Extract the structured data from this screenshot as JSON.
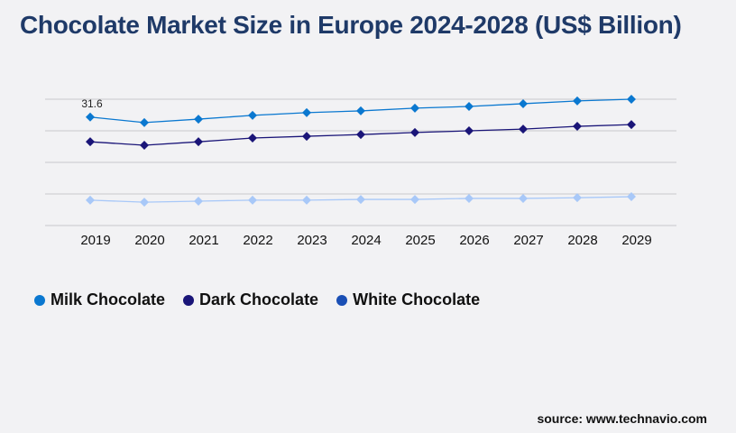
{
  "chart_data": {
    "type": "line",
    "title": "Chocolate Market Size in Europe 2024-2028 (US$ Billion)",
    "xlabel": "",
    "ylabel": "",
    "categories": [
      "2019",
      "2020",
      "2021",
      "2022",
      "2023",
      "2024",
      "2025",
      "2026",
      "2027",
      "2028",
      "2029"
    ],
    "ylim": [
      0,
      36.8
    ],
    "grid": true,
    "legend_position": "bottom-left",
    "series": [
      {
        "name": "Milk Chocolate",
        "color": "#0a78d0",
        "legend_color": "#0a78d0",
        "values": [
          31.6,
          30.0,
          31.0,
          32.1,
          32.9,
          33.4,
          34.2,
          34.7,
          35.5,
          36.3,
          36.8
        ]
      },
      {
        "name": "Dark Chocolate",
        "color": "#1a1578",
        "legend_color": "#1a1578",
        "values": [
          24.4,
          23.4,
          24.4,
          25.5,
          26.0,
          26.5,
          27.1,
          27.6,
          28.1,
          28.9,
          29.4
        ]
      },
      {
        "name": "White Chocolate",
        "color": "#a8c8f8",
        "legend_color": "#1a4fb5",
        "values": [
          7.4,
          6.8,
          7.1,
          7.4,
          7.4,
          7.6,
          7.6,
          7.9,
          7.9,
          8.1,
          8.4
        ]
      }
    ],
    "annotations": [
      {
        "series": "Milk Chocolate",
        "category": "2019",
        "text": "31.6"
      }
    ]
  },
  "source": "source: www.technavio.com"
}
